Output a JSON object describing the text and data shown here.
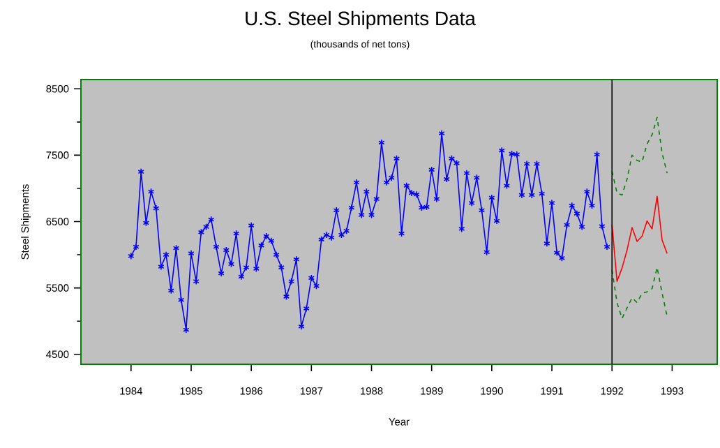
{
  "chart_data": {
    "type": "line",
    "title": "U.S. Steel Shipments Data",
    "subtitle": "(thousands of net tons)",
    "xlabel": "Year",
    "ylabel": "Steel Shipments",
    "xlim": [
      "1983-03",
      "1993-10"
    ],
    "ylim": [
      4350,
      8640
    ],
    "xticks": [
      "1984",
      "1985",
      "1986",
      "1987",
      "1988",
      "1989",
      "1990",
      "1991",
      "1992",
      "1993"
    ],
    "yticks": [
      4500,
      5500,
      6500,
      7500,
      8500
    ],
    "ref_lines": [
      {
        "axis": "x",
        "value": "1992-01",
        "color": "#000000"
      }
    ],
    "series": [
      {
        "color": "#0000ff",
        "marker": "cross",
        "line_style": "solid",
        "x": [
          "1984-01",
          "1984-02",
          "1984-03",
          "1984-04",
          "1984-05",
          "1984-06",
          "1984-07",
          "1984-08",
          "1984-09",
          "1984-10",
          "1984-11",
          "1984-12",
          "1985-01",
          "1985-02",
          "1985-03",
          "1985-04",
          "1985-05",
          "1985-06",
          "1985-07",
          "1985-08",
          "1985-09",
          "1985-10",
          "1985-11",
          "1985-12",
          "1986-01",
          "1986-02",
          "1986-03",
          "1986-04",
          "1986-05",
          "1986-06",
          "1986-07",
          "1986-08",
          "1986-09",
          "1986-10",
          "1986-11",
          "1986-12",
          "1987-01",
          "1987-02",
          "1987-03",
          "1987-04",
          "1987-05",
          "1987-06",
          "1987-07",
          "1987-08",
          "1987-09",
          "1987-10",
          "1987-11",
          "1987-12",
          "1988-01",
          "1988-02",
          "1988-03",
          "1988-04",
          "1988-05",
          "1988-06",
          "1988-07",
          "1988-08",
          "1988-09",
          "1988-10",
          "1988-11",
          "1988-12",
          "1989-01",
          "1989-02",
          "1989-03",
          "1989-04",
          "1989-05",
          "1989-06",
          "1989-07",
          "1989-08",
          "1989-09",
          "1989-10",
          "1989-11",
          "1989-12",
          "1990-01",
          "1990-02",
          "1990-03",
          "1990-04",
          "1990-05",
          "1990-06",
          "1990-07",
          "1990-08",
          "1990-09",
          "1990-10",
          "1990-11",
          "1990-12",
          "1991-01",
          "1991-02",
          "1991-03",
          "1991-04",
          "1991-05",
          "1991-06",
          "1991-07",
          "1991-08",
          "1991-09",
          "1991-10",
          "1991-11",
          "1991-12"
        ],
        "values": [
          5980,
          6120,
          7250,
          6480,
          6950,
          6700,
          5820,
          6000,
          5460,
          6100,
          5320,
          4870,
          6020,
          5600,
          6340,
          6420,
          6530,
          6120,
          5720,
          6070,
          5860,
          6320,
          5670,
          5810,
          6440,
          5790,
          6140,
          6280,
          6210,
          6000,
          5810,
          5370,
          5600,
          5930,
          4920,
          5190,
          5650,
          5530,
          6230,
          6300,
          6260,
          6670,
          6300,
          6360,
          6710,
          7090,
          6600,
          6950,
          6600,
          6840,
          7690,
          7090,
          7160,
          7450,
          6320,
          7040,
          6930,
          6910,
          6710,
          6720,
          7280,
          6840,
          7830,
          7140,
          7450,
          7380,
          6390,
          7230,
          6780,
          7160,
          6670,
          6040,
          6860,
          6510,
          7570,
          7040,
          7520,
          7510,
          6900,
          7370,
          6900,
          7370,
          6920,
          6170,
          6780,
          6030,
          5950,
          6450,
          6740,
          6620,
          6420,
          6950,
          6740,
          7510,
          6430,
          6120
        ]
      },
      {
        "color": "#ff0000",
        "marker": "none",
        "line_style": "solid",
        "x": [
          "1992-01",
          "1992-02",
          "1992-03",
          "1992-04",
          "1992-05",
          "1992-06",
          "1992-07",
          "1992-08",
          "1992-09",
          "1992-10",
          "1992-11",
          "1992-12"
        ],
        "values": [
          6460,
          5600,
          5800,
          6070,
          6410,
          6200,
          6280,
          6510,
          6390,
          6880,
          6220,
          6020
        ]
      },
      {
        "color": "#008000",
        "marker": "none",
        "line_style": "dashed",
        "x": [
          "1992-01",
          "1992-02",
          "1992-03",
          "1992-04",
          "1992-05",
          "1992-06",
          "1992-07",
          "1992-08",
          "1992-09",
          "1992-10",
          "1992-11",
          "1992-12"
        ],
        "values": [
          7260,
          6930,
          6900,
          7140,
          7500,
          7420,
          7400,
          7670,
          7810,
          8070,
          7530,
          7230
        ]
      },
      {
        "color": "#008000",
        "marker": "none",
        "line_style": "dashed",
        "x": [
          "1992-01",
          "1992-02",
          "1992-03",
          "1992-04",
          "1992-05",
          "1992-06",
          "1992-07",
          "1992-08",
          "1992-09",
          "1992-10",
          "1992-11",
          "1992-12"
        ],
        "values": [
          5770,
          5280,
          5040,
          5200,
          5350,
          5280,
          5420,
          5440,
          5490,
          5810,
          5420,
          5070
        ]
      }
    ]
  }
}
